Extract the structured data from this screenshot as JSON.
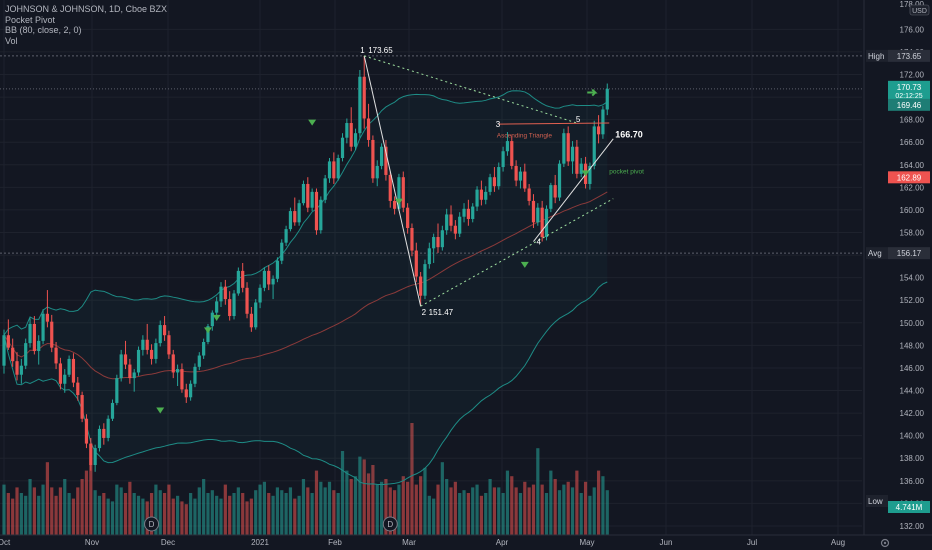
{
  "legend": {
    "symbol_line": "JOHNSON & JOHNSON, 1D, Cboe BZX",
    "indicator_1": "Pocket Pivot",
    "indicator_2": "BB (80, close, 2, 0)",
    "indicator_3": "Vol"
  },
  "colors": {
    "background": "#131722",
    "up": "#26a69a",
    "down": "#ef5350",
    "text": "#b2b5be",
    "bb_band": "#1e8c86",
    "bb_basis": "#8b3a3a",
    "annotation": "#ffffff",
    "triangle_text": "#d06050",
    "pivot_marker": "#4caf50",
    "arrow": "#4caf50"
  },
  "chart_data": {
    "type": "candlestick",
    "symbol": "JOHNSON & JOHNSON",
    "interval": "1D",
    "exchange": "Cboe BZX",
    "price_unit": "USD",
    "y_axis": {
      "range": [
        131.2,
        178.6
      ],
      "ticks": [
        "132.00",
        "134.00",
        "136.00",
        "138.00",
        "140.00",
        "142.00",
        "144.00",
        "146.00",
        "148.00",
        "150.00",
        "152.00",
        "154.00",
        "156.00",
        "158.00",
        "160.00",
        "162.00",
        "164.00",
        "166.00",
        "168.00",
        "170.00",
        "172.00",
        "174.00",
        "176.00"
      ],
      "top_label": "178.00"
    },
    "x_axis": {
      "labels": [
        "Oct",
        "Nov",
        "Dec",
        "2021",
        "Feb",
        "Mar",
        "Apr",
        "May",
        "Jun",
        "Jul",
        "Aug"
      ]
    },
    "price_labels": [
      {
        "name": "High",
        "value": "173.65"
      },
      {
        "name": "last",
        "value": "170.73",
        "countdown": "02:12:25"
      },
      {
        "name": "bb_upper",
        "value": "169.46"
      },
      {
        "name": "bb_basis",
        "value": "162.89"
      },
      {
        "name": "Avg",
        "value": "156.17"
      },
      {
        "name": "Low",
        "value": "4.741M"
      }
    ],
    "annotations": {
      "wave_1": "1",
      "wave_1_price": "173.65",
      "wave_2": "2",
      "wave_2_price": "151.47",
      "wave_3": "3",
      "wave_4": "4",
      "wave_5": "5",
      "target": "166.70",
      "pattern": "Ascending Triangle",
      "pocket_pivot": "pocket pivot"
    },
    "dividend_marker": "D",
    "reference_lines": {
      "high": 173.65,
      "avg": 156.17,
      "last": 170.73
    },
    "bollinger": {
      "length": 80,
      "source": "close",
      "mult": 2
    },
    "candles": [
      [
        146.2,
        149.4,
        145.5,
        148.9
      ],
      [
        148.9,
        150.3,
        147.6,
        147.8
      ],
      [
        147.8,
        148.6,
        146.1,
        146.6
      ],
      [
        146.6,
        147.4,
        144.9,
        145.4
      ],
      [
        145.4,
        146.8,
        144.6,
        146.2
      ],
      [
        146.2,
        148.6,
        145.9,
        148.2
      ],
      [
        148.2,
        150.4,
        147.8,
        149.9
      ],
      [
        149.9,
        150.6,
        147.2,
        147.5
      ],
      [
        147.5,
        148.9,
        146.3,
        148.4
      ],
      [
        148.4,
        151.2,
        148.1,
        150.8
      ],
      [
        150.8,
        152.9,
        149.6,
        150.1
      ],
      [
        150.1,
        150.7,
        147.4,
        147.8
      ],
      [
        147.8,
        148.3,
        145.9,
        146.4
      ],
      [
        146.4,
        146.9,
        144.1,
        144.6
      ],
      [
        144.6,
        145.9,
        143.8,
        145.4
      ],
      [
        145.4,
        147.1,
        145.2,
        146.8
      ],
      [
        146.8,
        147.3,
        144.3,
        144.7
      ],
      [
        144.7,
        145.2,
        143.1,
        143.6
      ],
      [
        143.6,
        143.9,
        141.2,
        141.5
      ],
      [
        141.5,
        141.9,
        138.9,
        139.3
      ],
      [
        139.3,
        139.8,
        136.9,
        137.4
      ],
      [
        137.4,
        139.2,
        136.8,
        138.9
      ],
      [
        138.9,
        140.9,
        138.6,
        140.6
      ],
      [
        140.6,
        141.1,
        139.2,
        139.8
      ],
      [
        139.8,
        141.8,
        139.5,
        141.5
      ],
      [
        141.5,
        143.2,
        141.3,
        142.9
      ],
      [
        142.9,
        145.4,
        142.7,
        145.1
      ],
      [
        145.1,
        147.6,
        144.8,
        147.2
      ],
      [
        147.2,
        148.4,
        145.9,
        146.3
      ],
      [
        146.3,
        146.8,
        144.6,
        145.1
      ],
      [
        145.1,
        145.9,
        143.9,
        145.6
      ],
      [
        145.6,
        147.9,
        145.3,
        147.6
      ],
      [
        147.6,
        148.9,
        147.1,
        148.5
      ],
      [
        148.5,
        149.9,
        147.2,
        147.6
      ],
      [
        147.6,
        148.1,
        146.3,
        146.8
      ],
      [
        146.8,
        148.6,
        146.4,
        148.2
      ],
      [
        148.2,
        150.2,
        147.9,
        149.8
      ],
      [
        149.8,
        150.6,
        148.4,
        148.9
      ],
      [
        148.9,
        149.3,
        146.8,
        147.2
      ],
      [
        147.2,
        147.6,
        145.1,
        145.6
      ],
      [
        145.6,
        146.3,
        144.4,
        145.9
      ],
      [
        145.9,
        146.4,
        143.8,
        144.1
      ],
      [
        144.1,
        144.6,
        142.9,
        143.4
      ],
      [
        143.4,
        144.9,
        143.1,
        144.6
      ],
      [
        144.6,
        146.4,
        144.3,
        146.1
      ],
      [
        146.1,
        147.4,
        145.8,
        147.1
      ],
      [
        147.1,
        148.6,
        146.8,
        148.3
      ],
      [
        148.3,
        149.9,
        148.1,
        149.7
      ],
      [
        149.7,
        151.1,
        149.3,
        150.9
      ],
      [
        150.9,
        152.3,
        150.2,
        151.9
      ],
      [
        151.9,
        153.6,
        151.4,
        153.2
      ],
      [
        153.2,
        153.8,
        151.6,
        152.1
      ],
      [
        152.1,
        152.8,
        150.2,
        150.6
      ],
      [
        150.6,
        152.9,
        150.3,
        152.6
      ],
      [
        152.6,
        154.9,
        152.4,
        154.6
      ],
      [
        154.6,
        155.3,
        152.7,
        153.1
      ],
      [
        153.1,
        153.6,
        150.4,
        150.8
      ],
      [
        150.8,
        151.4,
        149.2,
        149.6
      ],
      [
        149.6,
        152.1,
        149.4,
        151.8
      ],
      [
        151.8,
        153.4,
        151.3,
        153.1
      ],
      [
        153.1,
        154.9,
        152.8,
        154.6
      ],
      [
        154.6,
        155.1,
        152.9,
        153.4
      ],
      [
        153.4,
        154.2,
        152.1,
        153.9
      ],
      [
        153.9,
        155.8,
        153.6,
        155.5
      ],
      [
        155.5,
        157.4,
        155.2,
        157.1
      ],
      [
        157.1,
        158.6,
        156.8,
        158.3
      ],
      [
        158.3,
        160.2,
        158.1,
        159.9
      ],
      [
        159.9,
        161.1,
        158.6,
        158.9
      ],
      [
        158.9,
        160.9,
        158.6,
        160.6
      ],
      [
        160.6,
        162.6,
        160.4,
        162.3
      ],
      [
        162.3,
        162.9,
        159.8,
        160.2
      ],
      [
        160.2,
        161.9,
        159.9,
        161.6
      ],
      [
        161.6,
        161.9,
        157.8,
        158.2
      ],
      [
        158.2,
        161.2,
        157.9,
        160.9
      ],
      [
        160.9,
        163.1,
        160.6,
        162.8
      ],
      [
        162.8,
        164.6,
        162.4,
        164.3
      ],
      [
        164.3,
        165.1,
        162.3,
        162.8
      ],
      [
        162.8,
        164.9,
        162.6,
        164.6
      ],
      [
        164.6,
        166.8,
        164.3,
        166.4
      ],
      [
        166.4,
        168.1,
        165.9,
        167.7
      ],
      [
        167.7,
        169.1,
        165.2,
        165.6
      ],
      [
        165.6,
        167.2,
        165.3,
        166.8
      ],
      [
        166.8,
        172.4,
        166.4,
        171.8
      ],
      [
        171.8,
        173.65,
        167.2,
        168.1
      ],
      [
        168.1,
        169.4,
        165.6,
        166.2
      ],
      [
        166.2,
        166.6,
        162.4,
        162.8
      ],
      [
        162.8,
        164.4,
        162.1,
        163.9
      ],
      [
        163.9,
        165.9,
        163.6,
        165.6
      ],
      [
        165.6,
        166.2,
        162.6,
        163.1
      ],
      [
        163.1,
        163.4,
        160.2,
        160.8
      ],
      [
        160.8,
        161.2,
        159.6,
        160.1
      ],
      [
        160.1,
        163.2,
        159.9,
        162.9
      ],
      [
        162.9,
        163.4,
        159.8,
        160.2
      ],
      [
        160.2,
        160.6,
        157.9,
        158.4
      ],
      [
        158.4,
        158.8,
        155.9,
        156.4
      ],
      [
        156.4,
        157.1,
        153.6,
        154.1
      ],
      [
        154.1,
        154.5,
        151.47,
        152.4
      ],
      [
        152.4,
        155.6,
        152.1,
        155.2
      ],
      [
        155.2,
        157.1,
        154.8,
        156.6
      ],
      [
        156.6,
        157.9,
        155.3,
        157.6
      ],
      [
        157.6,
        158.8,
        156.2,
        156.7
      ],
      [
        156.7,
        158.6,
        156.4,
        158.2
      ],
      [
        158.2,
        160.1,
        157.8,
        159.6
      ],
      [
        159.6,
        160.4,
        158.1,
        158.6
      ],
      [
        158.6,
        159.1,
        157.4,
        157.9
      ],
      [
        157.9,
        159.8,
        157.6,
        159.4
      ],
      [
        159.4,
        160.6,
        158.9,
        160.1
      ],
      [
        160.1,
        160.9,
        158.6,
        159.2
      ],
      [
        159.2,
        160.6,
        158.9,
        160.3
      ],
      [
        160.3,
        162.1,
        159.9,
        161.8
      ],
      [
        161.8,
        162.6,
        160.4,
        160.9
      ],
      [
        160.9,
        162.1,
        160.5,
        161.6
      ],
      [
        161.6,
        163.2,
        161.3,
        162.9
      ],
      [
        162.9,
        163.8,
        161.6,
        162.1
      ],
      [
        162.1,
        164.2,
        161.8,
        163.8
      ],
      [
        163.8,
        165.6,
        163.4,
        165.2
      ],
      [
        165.2,
        166.9,
        164.8,
        166.1
      ],
      [
        166.1,
        166.6,
        163.6,
        163.9
      ],
      [
        163.9,
        164.4,
        162.1,
        162.6
      ],
      [
        162.6,
        163.8,
        161.9,
        163.4
      ],
      [
        163.4,
        164.1,
        161.6,
        161.9
      ],
      [
        161.9,
        162.3,
        160.4,
        160.8
      ],
      [
        160.8,
        161.4,
        158.4,
        158.9
      ],
      [
        158.9,
        160.6,
        158.6,
        160.2
      ],
      [
        160.2,
        160.8,
        157.2,
        157.6
      ],
      [
        157.6,
        160.4,
        157.3,
        160.1
      ],
      [
        160.1,
        162.4,
        159.8,
        162.2
      ],
      [
        162.2,
        163.1,
        160.6,
        161.1
      ],
      [
        161.1,
        164.4,
        160.8,
        164.1
      ],
      [
        164.1,
        167.2,
        163.8,
        166.8
      ],
      [
        166.8,
        167.4,
        163.9,
        164.3
      ],
      [
        164.3,
        166.1,
        163.2,
        165.6
      ],
      [
        165.6,
        166.2,
        162.8,
        163.2
      ],
      [
        163.2,
        164.6,
        162.9,
        164.1
      ],
      [
        164.1,
        164.7,
        161.9,
        162.3
      ],
      [
        162.3,
        164.2,
        161.8,
        163.9
      ],
      [
        163.9,
        167.9,
        163.6,
        167.4
      ],
      [
        167.4,
        168.4,
        165.9,
        166.7
      ],
      [
        166.7,
        169.2,
        166.3,
        168.9
      ],
      [
        168.9,
        171.2,
        168.4,
        170.73
      ]
    ],
    "volume": [
      36,
      30,
      26,
      34,
      30,
      28,
      40,
      34,
      28,
      36,
      52,
      34,
      28,
      34,
      40,
      30,
      26,
      34,
      40,
      46,
      50,
      32,
      28,
      30,
      26,
      24,
      36,
      34,
      30,
      38,
      30,
      28,
      26,
      24,
      30,
      36,
      32,
      30,
      36,
      26,
      28,
      24,
      22,
      30,
      26,
      34,
      40,
      30,
      32,
      28,
      26,
      36,
      28,
      30,
      34,
      30,
      24,
      26,
      32,
      36,
      38,
      30,
      28,
      34,
      32,
      30,
      34,
      26,
      28,
      40,
      34,
      30,
      46,
      38,
      34,
      38,
      32,
      30,
      60,
      46,
      40,
      42,
      56,
      54,
      44,
      50,
      36,
      38,
      40,
      34,
      32,
      36,
      42,
      38,
      80,
      36,
      42,
      48,
      28,
      26,
      36,
      52,
      40,
      34,
      38,
      30,
      32,
      30,
      34,
      36,
      28,
      30,
      40,
      34,
      34,
      30,
      46,
      42,
      34,
      30,
      38,
      34,
      36,
      62,
      36,
      30,
      46,
      40,
      32,
      36,
      38,
      34,
      46,
      30,
      38,
      28,
      34,
      46,
      42,
      32
    ]
  }
}
